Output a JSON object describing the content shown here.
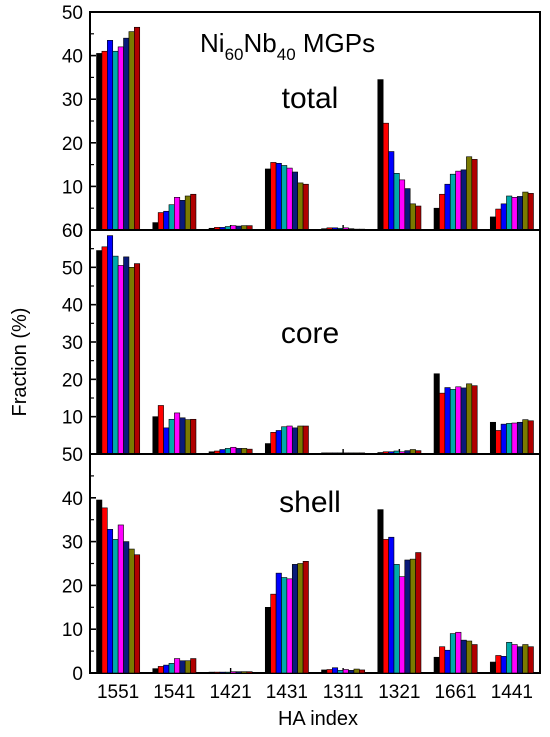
{
  "figure": {
    "title_main": "Ni",
    "title_sub1": "60",
    "title_mid": "Nb",
    "title_sub2": "40",
    "title_end": " MGPs",
    "ylabel": "Fraction (%)",
    "xlabel": "HA index"
  },
  "colors": [
    "#000000",
    "#ff0000",
    "#0000ff",
    "#00aaaa",
    "#ff00ff",
    "#0a1a7a",
    "#7a7a00",
    "#b00000"
  ],
  "chart_data": [
    {
      "type": "bar",
      "title": "total",
      "categories": [
        "1551",
        "1541",
        "1421",
        "1431",
        "1311",
        "1321",
        "1661",
        "1441"
      ],
      "ylim": [
        0,
        50
      ],
      "yticks": [
        0,
        10,
        20,
        30,
        40,
        50
      ],
      "series": [
        {
          "values": [
            40.5,
            1.7,
            0.4,
            14.0,
            0.3,
            34.5,
            5.0,
            3.0
          ]
        },
        {
          "values": [
            41.0,
            4.0,
            0.6,
            15.5,
            0.5,
            24.5,
            8.2,
            4.8
          ]
        },
        {
          "values": [
            43.5,
            4.3,
            0.6,
            15.3,
            0.5,
            18.0,
            10.5,
            6.0
          ]
        },
        {
          "values": [
            41.0,
            5.8,
            0.8,
            14.8,
            0.4,
            13.0,
            12.8,
            7.8
          ]
        },
        {
          "values": [
            42.0,
            7.5,
            1.0,
            14.2,
            0.5,
            11.5,
            13.5,
            7.5
          ]
        },
        {
          "values": [
            44.0,
            6.8,
            0.9,
            13.3,
            0.3,
            9.5,
            13.8,
            7.7
          ]
        },
        {
          "values": [
            45.5,
            7.8,
            1.0,
            10.8,
            0.2,
            6.0,
            16.8,
            8.7
          ]
        },
        {
          "values": [
            46.5,
            8.2,
            1.0,
            10.5,
            0.2,
            5.5,
            16.2,
            8.4
          ]
        }
      ]
    },
    {
      "type": "bar",
      "title": "core",
      "categories": [
        "1551",
        "1541",
        "1421",
        "1431",
        "1311",
        "1321",
        "1661",
        "1441"
      ],
      "ylim": [
        0,
        60
      ],
      "yticks": [
        10,
        20,
        30,
        40,
        50,
        60
      ],
      "series": [
        {
          "values": [
            54.5,
            10.0,
            0.6,
            2.8,
            0.3,
            0.4,
            21.5,
            8.5
          ]
        },
        {
          "values": [
            55.5,
            13.0,
            0.8,
            5.8,
            0.3,
            0.6,
            16.3,
            6.3
          ]
        },
        {
          "values": [
            58.5,
            7.0,
            1.2,
            6.3,
            0.3,
            0.6,
            17.8,
            8.0
          ]
        },
        {
          "values": [
            53.0,
            9.3,
            1.5,
            7.3,
            0.3,
            0.8,
            17.3,
            8.2
          ]
        },
        {
          "values": [
            50.5,
            11.0,
            1.8,
            7.5,
            0.3,
            0.6,
            18.0,
            8.3
          ]
        },
        {
          "values": [
            52.8,
            9.7,
            1.5,
            7.0,
            0.3,
            0.9,
            17.7,
            8.5
          ]
        },
        {
          "values": [
            50.0,
            9.2,
            1.5,
            7.5,
            0.3,
            1.2,
            18.8,
            9.2
          ]
        },
        {
          "values": [
            51.0,
            9.3,
            1.3,
            7.5,
            0.3,
            0.9,
            18.3,
            8.9
          ]
        }
      ]
    },
    {
      "type": "bar",
      "title": "shell",
      "categories": [
        "1551",
        "1541",
        "1421",
        "1431",
        "1311",
        "1321",
        "1661",
        "1441"
      ],
      "ylim": [
        0,
        50
      ],
      "yticks": [
        0,
        10,
        20,
        30,
        40,
        50
      ],
      "series": [
        {
          "values": [
            39.5,
            1.0,
            0.2,
            15.0,
            0.7,
            37.3,
            3.6,
            2.5
          ]
        },
        {
          "values": [
            37.7,
            1.5,
            0.2,
            18.0,
            0.8,
            30.5,
            6.0,
            4.0
          ]
        },
        {
          "values": [
            32.8,
            1.8,
            0.2,
            22.8,
            1.2,
            31.0,
            5.2,
            3.8
          ]
        },
        {
          "values": [
            30.5,
            2.2,
            0.2,
            21.8,
            0.6,
            24.8,
            9.0,
            7.0
          ]
        },
        {
          "values": [
            33.8,
            3.3,
            0.3,
            21.5,
            0.8,
            22.0,
            9.3,
            6.5
          ]
        },
        {
          "values": [
            30.0,
            2.8,
            0.3,
            24.8,
            0.6,
            25.8,
            7.5,
            6.0
          ]
        },
        {
          "values": [
            28.3,
            2.8,
            0.3,
            25.0,
            0.9,
            26.0,
            7.3,
            6.5
          ]
        },
        {
          "values": [
            27.0,
            3.3,
            0.3,
            25.5,
            0.7,
            27.5,
            6.5,
            6.0
          ]
        }
      ]
    }
  ]
}
